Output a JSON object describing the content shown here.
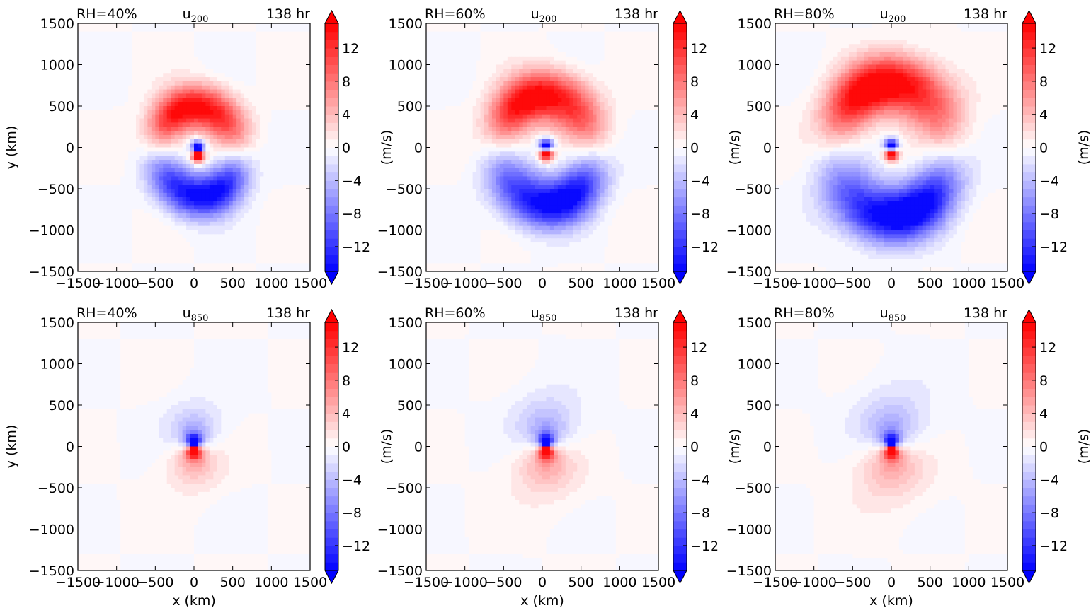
{
  "figure": {
    "colorbar_label": "(m/s)",
    "colorbar_ticks": [
      -12,
      -8,
      -4,
      0,
      4,
      8,
      12
    ],
    "colorbar_range": [
      -15,
      15
    ],
    "colorbar_levels": 30,
    "colors": {
      "negative_max": "#0000ff",
      "zero": "#ffffff",
      "positive_max": "#ff0000"
    },
    "axis_ticks": [
      -1500,
      -1000,
      -500,
      0,
      500,
      1000,
      1500
    ],
    "xlabel": "x (km)",
    "ylabel": "y (km)"
  },
  "chart_data": [
    {
      "type": "heatmap",
      "row": 0,
      "col": 0,
      "title_left": "RH=40%",
      "var_base": "u",
      "var_sub": "200",
      "title_right": "138 hr",
      "xlim": [
        -1500,
        1500
      ],
      "ylim": [
        -1500,
        1500
      ],
      "pattern": "upper",
      "amplitude": 15,
      "core_x": 50,
      "core_y": -50,
      "ring_radius": 520,
      "ring_width": 260
    },
    {
      "type": "heatmap",
      "row": 0,
      "col": 1,
      "title_left": "RH=60%",
      "var_base": "u",
      "var_sub": "200",
      "title_right": "138 hr",
      "xlim": [
        -1500,
        1500
      ],
      "ylim": [
        -1500,
        1500
      ],
      "pattern": "upper",
      "amplitude": 15,
      "core_x": 50,
      "core_y": -30,
      "ring_radius": 620,
      "ring_width": 300
    },
    {
      "type": "heatmap",
      "row": 0,
      "col": 2,
      "title_left": "RH=80%",
      "var_base": "u",
      "var_sub": "200",
      "title_right": "138 hr",
      "xlim": [
        -1500,
        1500
      ],
      "ylim": [
        -1500,
        1500
      ],
      "pattern": "upper",
      "amplitude": 15,
      "core_x": 0,
      "core_y": -30,
      "ring_radius": 760,
      "ring_width": 340
    },
    {
      "type": "heatmap",
      "row": 1,
      "col": 0,
      "title_left": "RH=40%",
      "var_base": "u",
      "var_sub": "850",
      "title_right": "138 hr",
      "xlim": [
        -1500,
        1500
      ],
      "ylim": [
        -1500,
        1500
      ],
      "pattern": "lower",
      "amplitude": 15,
      "core_x": 0,
      "core_y": 0,
      "ring_radius": 420,
      "ring_width": 0
    },
    {
      "type": "heatmap",
      "row": 1,
      "col": 1,
      "title_left": "RH=60%",
      "var_base": "u",
      "var_sub": "850",
      "title_right": "138 hr",
      "xlim": [
        -1500,
        1500
      ],
      "ylim": [
        -1500,
        1500
      ],
      "pattern": "lower",
      "amplitude": 15,
      "core_x": 50,
      "core_y": 0,
      "ring_radius": 520,
      "ring_width": 0
    },
    {
      "type": "heatmap",
      "row": 1,
      "col": 2,
      "title_left": "RH=80%",
      "var_base": "u",
      "var_sub": "850",
      "title_right": "138 hr",
      "xlim": [
        -1500,
        1500
      ],
      "ylim": [
        -1500,
        1500
      ],
      "pattern": "lower",
      "amplitude": 15,
      "core_x": 0,
      "core_y": 0,
      "ring_radius": 560,
      "ring_width": 0
    }
  ]
}
